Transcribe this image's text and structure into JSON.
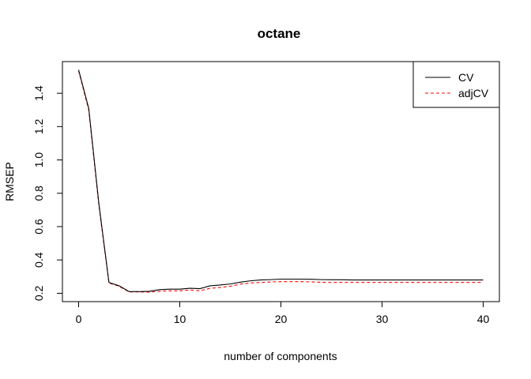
{
  "chart_data": {
    "type": "line",
    "title": "octane",
    "xlabel": "number of components",
    "ylabel": "RMSEP",
    "xlim": [
      -1.6,
      41.6
    ],
    "ylim": [
      0.15,
      1.59
    ],
    "xticks": [
      0,
      10,
      20,
      30,
      40
    ],
    "yticks": [
      0.2,
      0.4,
      0.6,
      0.8,
      1.0,
      1.2,
      1.4
    ],
    "ytick_labels": [
      "0.2",
      "0.4",
      "0.6",
      "0.8",
      "1.0",
      "1.2",
      "1.4"
    ],
    "xtick_labels": [
      "0",
      "10",
      "20",
      "30",
      "40"
    ],
    "grid": false,
    "legend_position": "top-right",
    "x": [
      0,
      1,
      2,
      3,
      4,
      5,
      6,
      7,
      8,
      9,
      10,
      11,
      12,
      13,
      14,
      15,
      16,
      17,
      18,
      19,
      20,
      21,
      22,
      23,
      24,
      25,
      26,
      27,
      28,
      29,
      30,
      31,
      32,
      33,
      34,
      35,
      36,
      37,
      38,
      39,
      40
    ],
    "series": [
      {
        "name": "CV",
        "color": "#000000",
        "dash": "solid",
        "values": [
          1.54,
          1.31,
          0.74,
          0.265,
          0.245,
          0.21,
          0.21,
          0.212,
          0.222,
          0.225,
          0.225,
          0.23,
          0.228,
          0.245,
          0.25,
          0.256,
          0.267,
          0.275,
          0.28,
          0.282,
          0.285,
          0.285,
          0.285,
          0.284,
          0.282,
          0.281,
          0.281,
          0.28,
          0.28,
          0.28,
          0.28,
          0.28,
          0.28,
          0.28,
          0.28,
          0.28,
          0.28,
          0.28,
          0.28,
          0.28,
          0.28
        ]
      },
      {
        "name": "adjCV",
        "color": "#ff0000",
        "dash": "dashed",
        "values": [
          1.535,
          1.3,
          0.73,
          0.262,
          0.242,
          0.208,
          0.208,
          0.207,
          0.212,
          0.215,
          0.215,
          0.22,
          0.215,
          0.23,
          0.235,
          0.242,
          0.255,
          0.262,
          0.265,
          0.268,
          0.27,
          0.27,
          0.27,
          0.268,
          0.266,
          0.265,
          0.265,
          0.265,
          0.265,
          0.265,
          0.265,
          0.265,
          0.265,
          0.265,
          0.265,
          0.265,
          0.265,
          0.265,
          0.265,
          0.265,
          0.265
        ]
      }
    ]
  }
}
